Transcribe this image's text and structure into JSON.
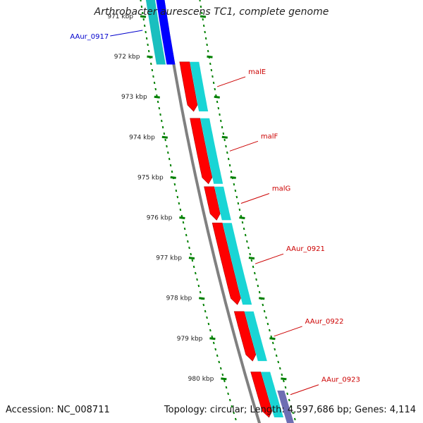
{
  "title": "Arthrobacter aurescens TC1, complete genome",
  "footer": {
    "accession": "Accession: NC_008711",
    "topology": "Topology: circular; Length: 4,597,686 bp; Genes: 4,114"
  },
  "colors": {
    "forward_gene": "#ff0000",
    "forward_cds": "#00d0d0",
    "reverse_gene": "#0000ff",
    "reverse_cds": "#00b8b8",
    "backbone": "#808080",
    "tick": "#008000",
    "label_forward": "#cc0000",
    "label_reverse": "#0000cc"
  },
  "ticks": [
    {
      "label": "971 kbp",
      "kbp": 971
    },
    {
      "label": "972 kbp",
      "kbp": 972
    },
    {
      "label": "973 kbp",
      "kbp": 973
    },
    {
      "label": "974 kbp",
      "kbp": 974
    },
    {
      "label": "975 kbp",
      "kbp": 975
    },
    {
      "label": "976 kbp",
      "kbp": 976
    },
    {
      "label": "977 kbp",
      "kbp": 977
    },
    {
      "label": "978 kbp",
      "kbp": 978
    },
    {
      "label": "979 kbp",
      "kbp": 979
    },
    {
      "label": "980 kbp",
      "kbp": 980
    }
  ],
  "genes": [
    {
      "name": "AAur_0917",
      "strand": "-",
      "start_kbp": 970.5,
      "end_kbp": 972.2
    },
    {
      "name": "malE",
      "strand": "+",
      "start_kbp": 972.1,
      "end_kbp": 973.4
    },
    {
      "name": "malF",
      "strand": "+",
      "start_kbp": 973.5,
      "end_kbp": 975.2
    },
    {
      "name": "malG",
      "strand": "+",
      "start_kbp": 975.2,
      "end_kbp": 976.1
    },
    {
      "name": "AAur_0921",
      "strand": "+",
      "start_kbp": 976.1,
      "end_kbp": 978.2
    },
    {
      "name": "AAur_0922",
      "strand": "+",
      "start_kbp": 978.3,
      "end_kbp": 979.6
    },
    {
      "name": "AAur_0923",
      "strand": "+",
      "start_kbp": 979.8,
      "end_kbp": 981.0
    }
  ]
}
